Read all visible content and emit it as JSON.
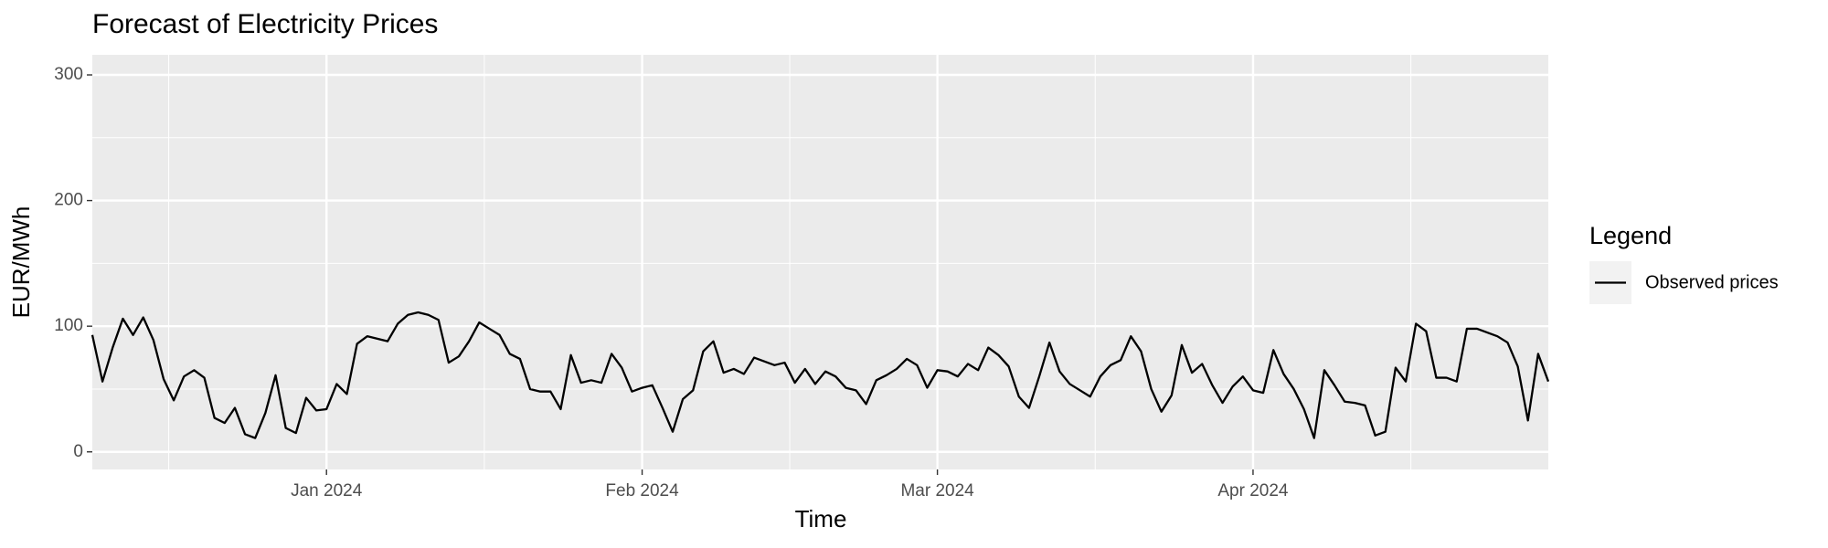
{
  "chart_data": {
    "type": "line",
    "title": "Forecast of Electricity Prices",
    "x_label": "Time",
    "y_label": "EUR/MWh",
    "legend_title": "Legend",
    "legend_position": "right",
    "grid": true,
    "x": [
      "2023-12-09",
      "2023-12-10",
      "2023-12-11",
      "2023-12-12",
      "2023-12-13",
      "2023-12-14",
      "2023-12-15",
      "2023-12-16",
      "2023-12-17",
      "2023-12-18",
      "2023-12-19",
      "2023-12-20",
      "2023-12-21",
      "2023-12-22",
      "2023-12-23",
      "2023-12-24",
      "2023-12-25",
      "2023-12-26",
      "2023-12-27",
      "2023-12-28",
      "2023-12-29",
      "2023-12-30",
      "2023-12-31",
      "2024-01-01",
      "2024-01-02",
      "2024-01-03",
      "2024-01-04",
      "2024-01-05",
      "2024-01-06",
      "2024-01-07",
      "2024-01-08",
      "2024-01-09",
      "2024-01-10",
      "2024-01-11",
      "2024-01-12",
      "2024-01-13",
      "2024-01-14",
      "2024-01-15",
      "2024-01-16",
      "2024-01-17",
      "2024-01-18",
      "2024-01-19",
      "2024-01-20",
      "2024-01-21",
      "2024-01-22",
      "2024-01-23",
      "2024-01-24",
      "2024-01-25",
      "2024-01-26",
      "2024-01-27",
      "2024-01-28",
      "2024-01-29",
      "2024-01-30",
      "2024-01-31",
      "2024-02-01",
      "2024-02-02",
      "2024-02-03",
      "2024-02-04",
      "2024-02-05",
      "2024-02-06",
      "2024-02-07",
      "2024-02-08",
      "2024-02-09",
      "2024-02-10",
      "2024-02-11",
      "2024-02-12",
      "2024-02-13",
      "2024-02-14",
      "2024-02-15",
      "2024-02-16",
      "2024-02-17",
      "2024-02-18",
      "2024-02-19",
      "2024-02-20",
      "2024-02-21",
      "2024-02-22",
      "2024-02-23",
      "2024-02-24",
      "2024-02-25",
      "2024-02-26",
      "2024-02-27",
      "2024-02-28",
      "2024-02-29",
      "2024-03-01",
      "2024-03-02",
      "2024-03-03",
      "2024-03-04",
      "2024-03-05",
      "2024-03-06",
      "2024-03-07",
      "2024-03-08",
      "2024-03-09",
      "2024-03-10",
      "2024-03-11",
      "2024-03-12",
      "2024-03-13",
      "2024-03-14",
      "2024-03-15",
      "2024-03-16",
      "2024-03-17",
      "2024-03-18",
      "2024-03-19",
      "2024-03-20",
      "2024-03-21",
      "2024-03-22",
      "2024-03-23",
      "2024-03-24",
      "2024-03-25",
      "2024-03-26",
      "2024-03-27",
      "2024-03-28",
      "2024-03-29",
      "2024-03-30",
      "2024-03-31",
      "2024-04-01",
      "2024-04-02",
      "2024-04-03",
      "2024-04-04",
      "2024-04-05",
      "2024-04-06",
      "2024-04-07",
      "2024-04-08",
      "2024-04-09",
      "2024-04-10",
      "2024-04-11",
      "2024-04-12",
      "2024-04-13",
      "2024-04-14",
      "2024-04-15",
      "2024-04-16",
      "2024-04-17",
      "2024-04-18",
      "2024-04-19",
      "2024-04-20",
      "2024-04-21",
      "2024-04-22",
      "2024-04-23",
      "2024-04-24",
      "2024-04-25",
      "2024-04-26",
      "2024-04-27",
      "2024-04-28",
      "2024-04-29",
      "2024-04-30"
    ],
    "series": [
      {
        "name": "Observed prices",
        "color": "#000000",
        "values": [
          93,
          56,
          83,
          106,
          93,
          107,
          89,
          58,
          41,
          60,
          65,
          59,
          27,
          23,
          35,
          14,
          11,
          31,
          61,
          19,
          15,
          43,
          33,
          34,
          54,
          46,
          86,
          92,
          90,
          88,
          102,
          109,
          111,
          109,
          105,
          71,
          76,
          88,
          103,
          98,
          93,
          78,
          74,
          50,
          48,
          48,
          34,
          77,
          55,
          57,
          55,
          78,
          67,
          48,
          51,
          53,
          35,
          16,
          42,
          49,
          80,
          88,
          63,
          66,
          62,
          75,
          72,
          69,
          71,
          55,
          66,
          54,
          64,
          60,
          51,
          49,
          38,
          57,
          61,
          66,
          74,
          69,
          51,
          65,
          64,
          60,
          70,
          65,
          83,
          77,
          68,
          44,
          35,
          60,
          87,
          64,
          54,
          49,
          44,
          60,
          69,
          73,
          92,
          80,
          50,
          32,
          45,
          85,
          63,
          70,
          53,
          39,
          52,
          60,
          49,
          47,
          81,
          62,
          50,
          34,
          11,
          65,
          53,
          40,
          39,
          37,
          13,
          16,
          67,
          56,
          102,
          96,
          59,
          59,
          56,
          98,
          98,
          95,
          92,
          87,
          68,
          25,
          78,
          56
        ]
      }
    ],
    "xlim": [
      "2023-12-09",
      "2024-04-30"
    ],
    "xticks": [
      {
        "value": "2024-01-01",
        "label": "Jan 2024"
      },
      {
        "value": "2024-02-01",
        "label": "Feb 2024"
      },
      {
        "value": "2024-03-01",
        "label": "Mar 2024"
      },
      {
        "value": "2024-04-01",
        "label": "Apr 2024"
      }
    ],
    "ylim": [
      -14,
      316
    ],
    "yticks": [
      0,
      100,
      200,
      300
    ]
  }
}
